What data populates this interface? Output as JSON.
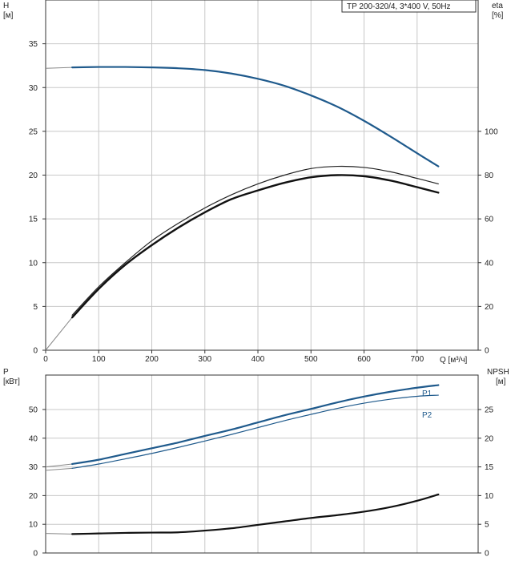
{
  "chart_data": [
    {
      "type": "line",
      "title": "TP 200-320/4, 3*400 V, 50Hz",
      "x_axis": {
        "label": "Q [м³/ч]",
        "ticks": [
          0,
          100,
          200,
          300,
          400,
          500,
          600,
          700
        ],
        "range": [
          0,
          815
        ]
      },
      "y_left": {
        "label_line1": "H",
        "label_line2": "[м]",
        "ticks": [
          0,
          5,
          10,
          15,
          20,
          25,
          30,
          35
        ],
        "range": [
          0,
          40
        ]
      },
      "y_right": {
        "label_line1": "eta",
        "label_line2": "[%]",
        "ticks": [
          0,
          20,
          40,
          60,
          80,
          100
        ],
        "range": [
          0,
          160
        ]
      },
      "grid": true,
      "series": [
        {
          "key": "H",
          "axis": "left",
          "color": "#1f5a8c",
          "width": 2.2,
          "dashed_start": true,
          "x": [
            0,
            50,
            100,
            150,
            200,
            250,
            300,
            350,
            400,
            450,
            500,
            550,
            600,
            650,
            700,
            740
          ],
          "y": [
            32.2,
            32.3,
            32.35,
            32.35,
            32.3,
            32.2,
            32.0,
            31.6,
            31.0,
            30.2,
            29.1,
            27.8,
            26.2,
            24.4,
            22.5,
            21.0
          ]
        },
        {
          "key": "eta-upper",
          "axis": "right",
          "color": "#222222",
          "width": 1.2,
          "x": [
            50,
            100,
            150,
            200,
            250,
            300,
            350,
            400,
            450,
            500,
            550,
            600,
            650,
            700,
            740
          ],
          "y": [
            16,
            29,
            40,
            50,
            58,
            65,
            71,
            76,
            80,
            83,
            84,
            83.5,
            81.5,
            78.5,
            76
          ]
        },
        {
          "key": "eta",
          "axis": "right",
          "color": "#111111",
          "width": 2.4,
          "dashed_start": true,
          "x": [
            0,
            50,
            100,
            150,
            200,
            250,
            300,
            350,
            400,
            450,
            500,
            550,
            600,
            650,
            700,
            740
          ],
          "y": [
            0,
            15,
            28,
            39,
            48,
            56,
            63,
            69,
            73,
            76.5,
            79,
            80,
            79.5,
            77.5,
            74.5,
            72
          ]
        }
      ]
    },
    {
      "type": "line",
      "x_axis": {
        "ticks": [
          0,
          100,
          200,
          300,
          400,
          500,
          600,
          700
        ],
        "range": [
          0,
          815
        ]
      },
      "y_left": {
        "label_line1": "P",
        "label_line2": "[кВт]",
        "ticks": [
          0,
          10,
          20,
          30,
          40,
          50
        ],
        "range": [
          0,
          62
        ]
      },
      "y_right": {
        "label_line1": "NPSH",
        "label_line2": "[м]",
        "ticks": [
          0,
          5,
          10,
          15,
          20,
          25
        ],
        "range": [
          0,
          31
        ]
      },
      "grid": true,
      "series": [
        {
          "key": "P1",
          "name": "P1",
          "axis": "left",
          "color": "#1f5a8c",
          "width": 2.2,
          "dashed_start": true,
          "x": [
            0,
            50,
            100,
            150,
            200,
            250,
            300,
            350,
            400,
            450,
            500,
            550,
            600,
            650,
            700,
            740
          ],
          "y": [
            30,
            31,
            32.5,
            34.5,
            36.5,
            38.5,
            40.8,
            43,
            45.5,
            48,
            50.2,
            52.5,
            54.5,
            56.2,
            57.6,
            58.5
          ]
        },
        {
          "key": "P2",
          "name": "P2",
          "axis": "left",
          "color": "#1f5a8c",
          "width": 1.2,
          "dashed_start": true,
          "x": [
            0,
            50,
            100,
            150,
            200,
            250,
            300,
            350,
            400,
            450,
            500,
            550,
            600,
            650,
            700,
            740
          ],
          "y": [
            28.8,
            29.5,
            31,
            32.8,
            34.7,
            36.8,
            39,
            41.3,
            43.7,
            46.1,
            48.3,
            50.4,
            52.2,
            53.6,
            54.6,
            55
          ]
        },
        {
          "key": "NPSH",
          "axis": "right",
          "color": "#111111",
          "width": 2.2,
          "dashed_start": true,
          "x": [
            0,
            50,
            100,
            150,
            200,
            250,
            300,
            350,
            400,
            450,
            500,
            550,
            600,
            650,
            700,
            740
          ],
          "y": [
            3.4,
            3.3,
            3.4,
            3.5,
            3.55,
            3.6,
            3.9,
            4.3,
            4.9,
            5.5,
            6.1,
            6.6,
            7.2,
            8.0,
            9.1,
            10.2
          ]
        }
      ]
    }
  ]
}
